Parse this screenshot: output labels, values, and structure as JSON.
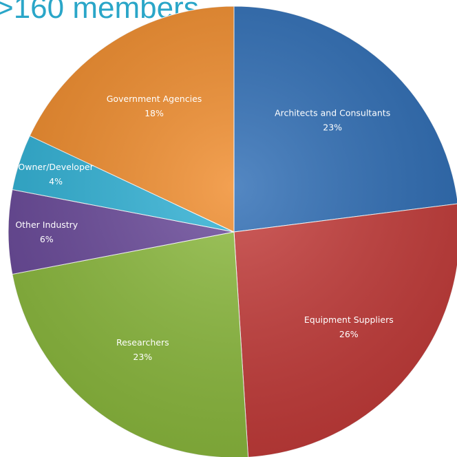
{
  "title": ">160 members",
  "chart_data": {
    "type": "pie",
    "categories": [
      "Architects and Consultants",
      "Equipment Suppliers",
      "Researchers",
      "Other Industry",
      "Owner/Developer",
      "Government Agencies"
    ],
    "values": [
      23,
      26,
      23,
      6,
      4,
      18
    ],
    "value_labels": [
      "23%",
      "26%",
      "23%",
      "6%",
      "4%",
      "18%"
    ],
    "colors": [
      "#2e6db5",
      "#c43c3a",
      "#8cba3e",
      "#6a4a9a",
      "#31b2d6",
      "#f08c2c"
    ],
    "start_angle_deg": 0,
    "direction": "clockwise",
    "legend": "none"
  }
}
